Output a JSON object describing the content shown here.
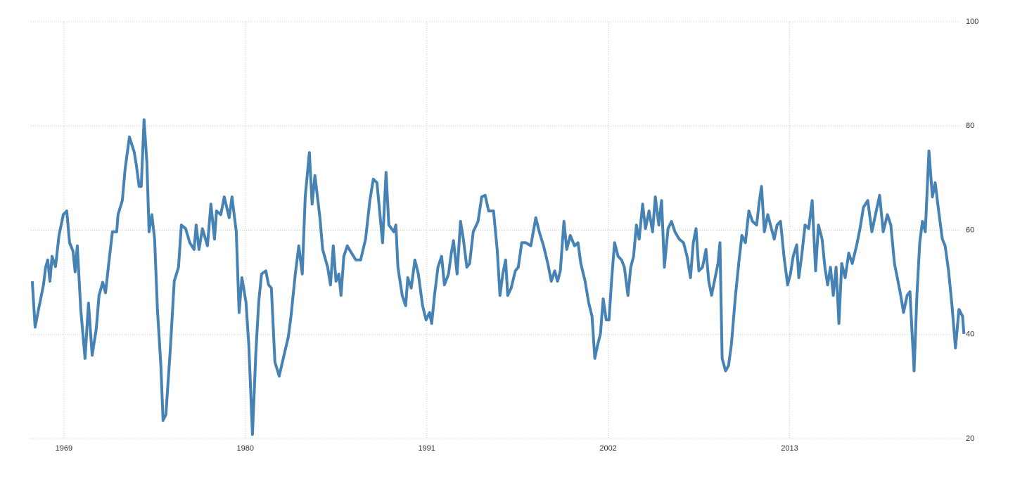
{
  "chart_data": {
    "type": "line",
    "x": [
      1967.08,
      1967.25,
      1967.46,
      1967.76,
      1967.89,
      1968.02,
      1968.15,
      1968.28,
      1968.49,
      1968.7,
      1968.96,
      1969.17,
      1969.34,
      1969.55,
      1969.68,
      1969.81,
      1970.02,
      1970.28,
      1970.49,
      1970.71,
      1970.96,
      1971.13,
      1971.35,
      1971.52,
      1971.73,
      1971.94,
      1972.2,
      1972.28,
      1972.54,
      1972.71,
      1972.97,
      1973.26,
      1973.39,
      1973.56,
      1973.69,
      1973.86,
      1974.03,
      1974.16,
      1974.33,
      1974.5,
      1974.67,
      1974.88,
      1975.01,
      1975.18,
      1975.44,
      1975.69,
      1975.95,
      1976.12,
      1976.38,
      1976.63,
      1976.89,
      1977.02,
      1977.19,
      1977.4,
      1977.7,
      1977.91,
      1978.13,
      1978.25,
      1978.51,
      1978.72,
      1979.02,
      1979.19,
      1979.45,
      1979.62,
      1979.79,
      1980.04,
      1980.21,
      1980.43,
      1980.64,
      1980.81,
      1980.98,
      1981.24,
      1981.41,
      1981.58,
      1981.79,
      1982.05,
      1982.3,
      1982.6,
      1982.77,
      1983.03,
      1983.24,
      1983.45,
      1983.63,
      1983.88,
      1984.05,
      1984.22,
      1984.52,
      1984.69,
      1984.99,
      1985.16,
      1985.33,
      1985.5,
      1985.67,
      1985.8,
      1985.97,
      1986.18,
      1986.44,
      1986.7,
      1986.99,
      1987.29,
      1987.55,
      1987.76,
      1987.98,
      1988.32,
      1988.53,
      1988.7,
      1989.0,
      1989.13,
      1989.25,
      1989.51,
      1989.72,
      1989.85,
      1990.06,
      1990.28,
      1990.49,
      1990.75,
      1990.96,
      1991.17,
      1991.3,
      1991.47,
      1991.68,
      1991.9,
      1992.07,
      1992.32,
      1992.49,
      1992.62,
      1992.84,
      1993.05,
      1993.22,
      1993.43,
      1993.6,
      1993.82,
      1994.11,
      1994.33,
      1994.54,
      1994.75,
      1995.05,
      1995.27,
      1995.44,
      1995.61,
      1995.78,
      1995.91,
      1996.12,
      1996.37,
      1996.55,
      1996.76,
      1997.01,
      1997.31,
      1997.61,
      1997.82,
      1998.08,
      1998.34,
      1998.55,
      1998.76,
      1998.93,
      1999.1,
      1999.32,
      1999.49,
      1999.7,
      1999.96,
      2000.17,
      2000.34,
      2000.6,
      2000.81,
      2001.02,
      2001.19,
      2001.36,
      2001.53,
      2001.7,
      2001.88,
      2002.05,
      2002.22,
      2002.39,
      2002.6,
      2002.81,
      2002.98,
      2003.2,
      2003.37,
      2003.54,
      2003.71,
      2003.88,
      2004.09,
      2004.26,
      2004.48,
      2004.69,
      2004.86,
      2005.07,
      2005.24,
      2005.41,
      2005.63,
      2005.84,
      2006.05,
      2006.31,
      2006.57,
      2006.78,
      2006.99,
      2007.16,
      2007.33,
      2007.5,
      2007.72,
      2007.93,
      2008.1,
      2008.27,
      2008.44,
      2008.66,
      2008.78,
      2008.91,
      2009.12,
      2009.3,
      2009.47,
      2009.72,
      2009.94,
      2010.11,
      2010.32,
      2010.53,
      2010.75,
      2011.0,
      2011.17,
      2011.3,
      2011.47,
      2011.68,
      2011.9,
      2012.07,
      2012.24,
      2012.45,
      2012.66,
      2012.88,
      2013.05,
      2013.22,
      2013.43,
      2013.56,
      2013.73,
      2013.94,
      2014.16,
      2014.37,
      2014.58,
      2014.75,
      2014.97,
      2015.14,
      2015.31,
      2015.48,
      2015.65,
      2015.82,
      2015.99,
      2016.16,
      2016.37,
      2016.59,
      2016.8,
      2017.06,
      2017.27,
      2017.48,
      2017.74,
      2017.99,
      2018.21,
      2018.46,
      2018.68,
      2018.93,
      2019.14,
      2019.36,
      2019.53,
      2019.74,
      2019.91,
      2020.13,
      2020.3,
      2020.42,
      2020.55,
      2020.72,
      2020.89,
      2021.06,
      2021.23,
      2021.45,
      2021.66,
      2021.83,
      2022.04,
      2022.26,
      2022.43,
      2022.64,
      2022.85,
      2023.06,
      2023.27,
      2023.49,
      2023.57
    ],
    "series": [
      {
        "color": "#4682b4",
        "values": [
          50.2,
          41.4,
          44.8,
          49.5,
          52.9,
          54.3,
          50.2,
          55,
          53,
          59,
          63,
          63.7,
          57.6,
          56,
          52,
          57,
          44.8,
          35.4,
          46,
          36,
          41,
          47.5,
          50,
          48,
          54,
          59.7,
          59.7,
          63,
          65.7,
          71.8,
          77.9,
          75,
          72.5,
          68.4,
          68.4,
          81.2,
          73,
          59.7,
          63,
          58.3,
          44.8,
          34,
          23.5,
          24.6,
          36.7,
          50.2,
          52.9,
          61,
          60.3,
          57.6,
          56.3,
          61,
          56.3,
          60.3,
          57,
          65,
          58.3,
          63.7,
          63,
          66.4,
          62.4,
          66.4,
          59.7,
          44.2,
          50.9,
          46.2,
          38,
          20.8,
          36.7,
          46.2,
          51.6,
          52.2,
          49.5,
          48.9,
          34.7,
          32,
          35.4,
          39.4,
          43.5,
          51.6,
          57,
          51.6,
          66.4,
          74.9,
          65,
          70.5,
          62.4,
          56.3,
          52.9,
          49.5,
          57,
          50.2,
          51.6,
          47.5,
          55,
          57,
          55.6,
          54.3,
          54.3,
          58.3,
          65.7,
          69.8,
          69.1,
          57.6,
          71.1,
          61,
          59.7,
          61,
          52.9,
          47.5,
          45.5,
          50.9,
          48.9,
          54.3,
          51.6,
          45.5,
          42.8,
          44.2,
          42.1,
          47.5,
          52.9,
          55,
          49.5,
          51.6,
          55.6,
          58,
          51.6,
          61.7,
          58.3,
          52.9,
          53.6,
          59.7,
          61.7,
          66.4,
          66.7,
          63.7,
          63.7,
          56.3,
          47.5,
          51.6,
          54.3,
          47.5,
          48.9,
          52.2,
          52.9,
          57.6,
          57.6,
          57,
          62.4,
          59.7,
          57,
          53.6,
          50.2,
          52.2,
          50.2,
          52.2,
          61.7,
          56.3,
          59,
          57,
          57.6,
          53.6,
          50.2,
          46.2,
          43.5,
          35.4,
          38,
          40.1,
          46.8,
          42.8,
          42.8,
          50.9,
          57.6,
          55,
          54.3,
          52.9,
          47.5,
          52.9,
          55,
          61,
          58.3,
          65,
          60.3,
          63.7,
          59.7,
          66.4,
          61,
          65.7,
          52.9,
          60.3,
          61.7,
          59.7,
          58.3,
          57.6,
          55,
          50.9,
          57.6,
          60.3,
          52.2,
          52.9,
          56.3,
          50.2,
          47.5,
          50.2,
          53.6,
          57.6,
          35.4,
          33,
          34,
          38,
          47.5,
          54.3,
          59,
          57.6,
          63.7,
          61.7,
          61,
          65.7,
          68.4,
          59.7,
          63,
          60.3,
          58.3,
          61,
          61.7,
          55,
          49.5,
          51.6,
          55,
          57.2,
          50.9,
          55,
          61,
          60.3,
          65.7,
          52.2,
          61,
          58.3,
          52.9,
          49.5,
          52.9,
          47.5,
          52.9,
          42.1,
          53.6,
          50.9,
          55.6,
          53.6,
          57,
          60.3,
          64.4,
          65.7,
          59.7,
          63,
          66.7,
          59.7,
          63,
          61,
          53.6,
          50.9,
          47.5,
          44.2,
          47.5,
          48.2,
          40.8,
          33,
          47.5,
          57.6,
          61.7,
          59.7,
          75.2,
          66.4,
          69.1,
          63.7,
          58.3,
          57,
          52.2,
          45.5,
          37.4,
          44.8,
          43.5,
          40.1
        ]
      }
    ],
    "xlim": [
      1967.0,
      2023.6
    ],
    "xticks": [
      1969,
      1980,
      1991,
      2002,
      2013
    ],
    "ylim": [
      20,
      100
    ],
    "yticks": [
      20,
      40,
      60,
      80,
      100
    ],
    "grid": true
  }
}
